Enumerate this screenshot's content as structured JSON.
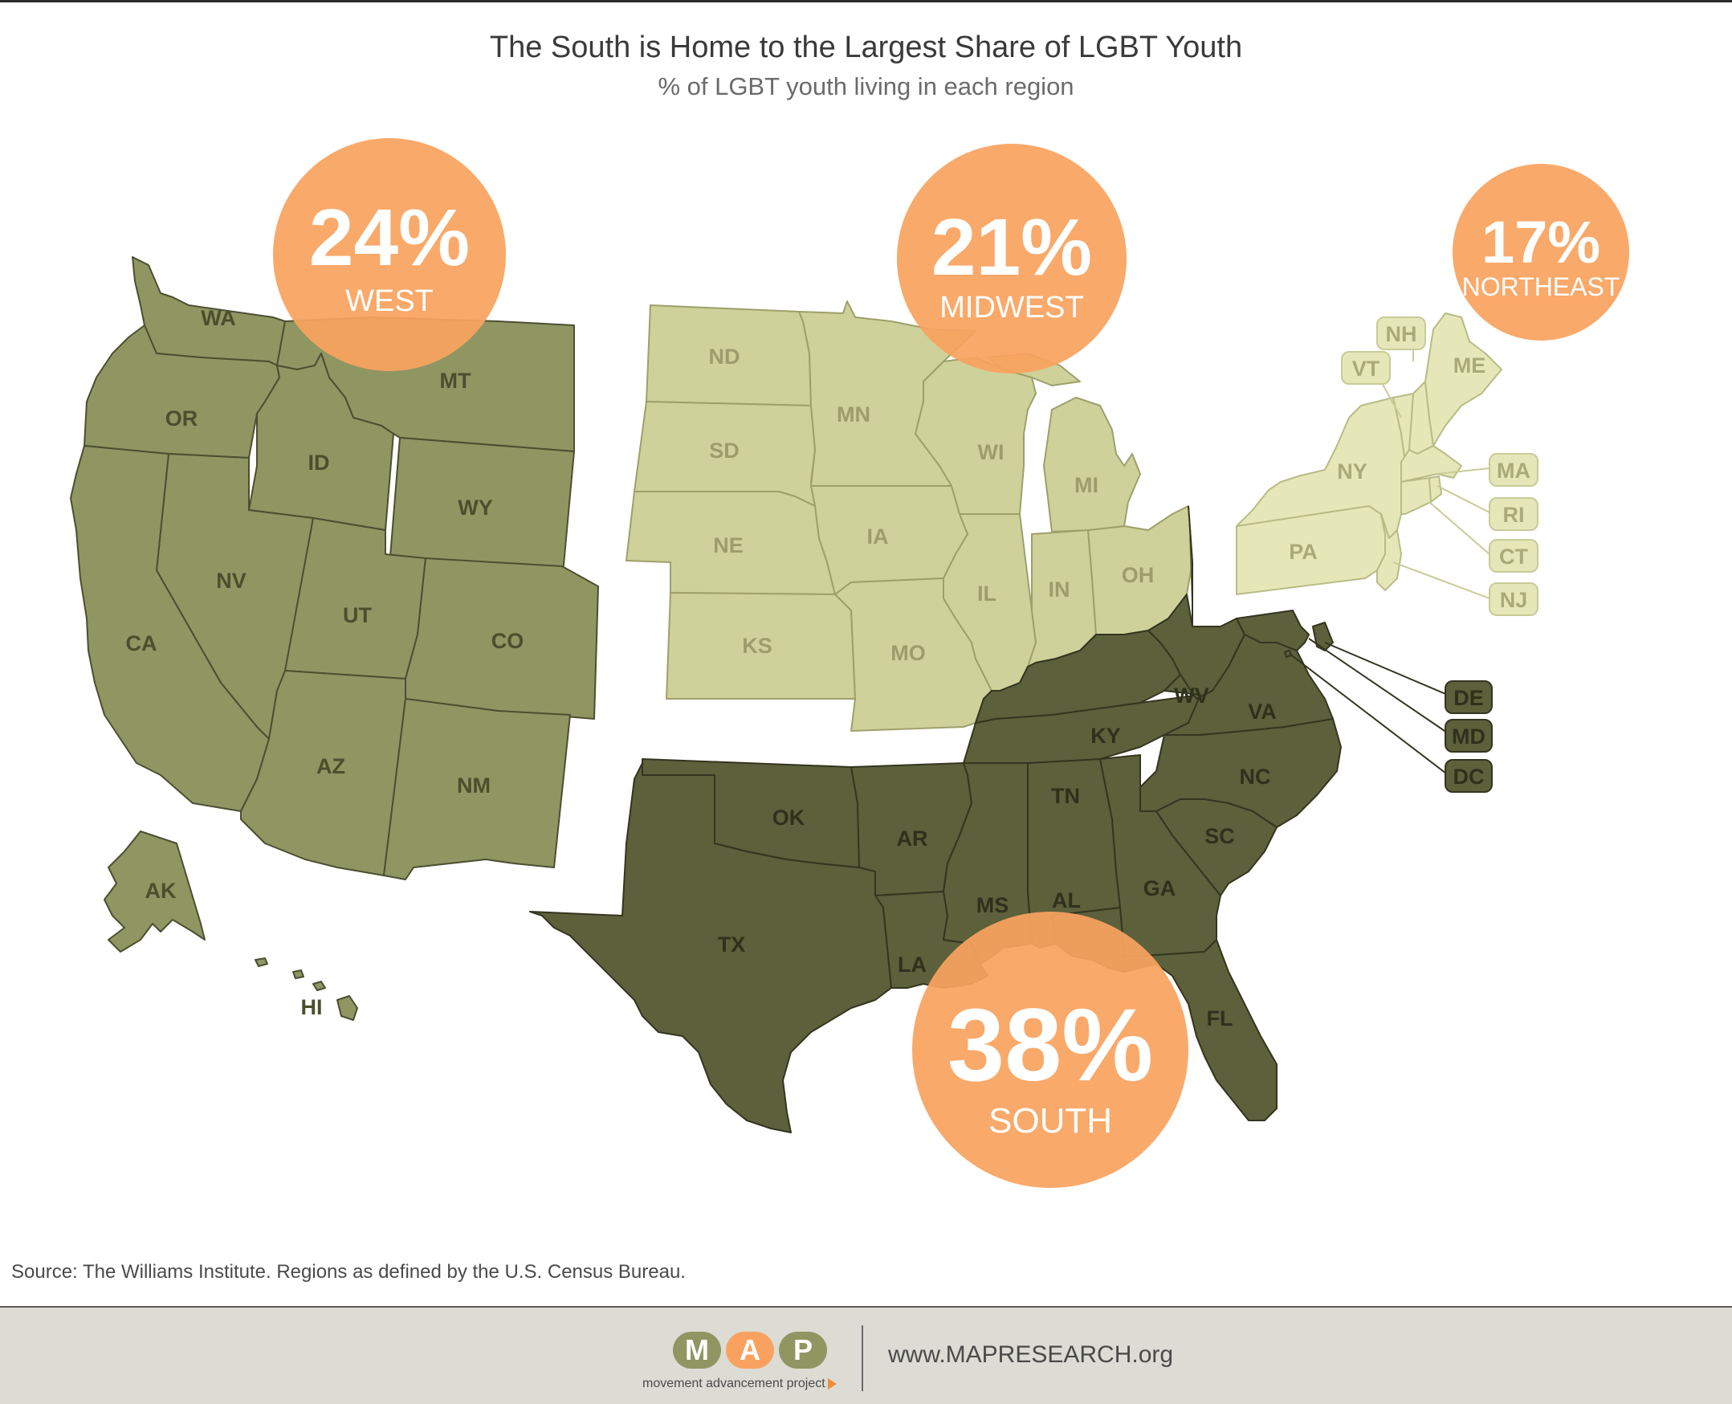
{
  "title": "The South is Home to the Largest Share of LGBT Youth",
  "subtitle": "% of LGBT youth living in each region",
  "regions": {
    "west": {
      "pct": "24%",
      "name": "WEST",
      "share": 24
    },
    "midwest": {
      "pct": "21%",
      "name": "MIDWEST",
      "share": 21
    },
    "northeast": {
      "pct": "17%",
      "name": "NORTHEAST",
      "share": 17
    },
    "south": {
      "pct": "38%",
      "name": "SOUTH",
      "share": 38
    }
  },
  "states": {
    "west": [
      "WA",
      "OR",
      "MT",
      "ID",
      "WY",
      "NV",
      "UT",
      "CO",
      "CA",
      "AZ",
      "NM",
      "AK",
      "HI"
    ],
    "midwest": [
      "ND",
      "MN",
      "SD",
      "WI",
      "MI",
      "NE",
      "IA",
      "IL",
      "IN",
      "OH",
      "KS",
      "MO"
    ],
    "northeast": [
      "NH",
      "VT",
      "ME",
      "NY",
      "MA",
      "RI",
      "CT",
      "PA",
      "NJ"
    ],
    "south": [
      "DE",
      "MD",
      "DC",
      "WV",
      "VA",
      "KY",
      "NC",
      "TN",
      "OK",
      "AR",
      "SC",
      "GA",
      "MS",
      "AL",
      "TX",
      "LA",
      "FL"
    ]
  },
  "colors": {
    "west": "#8f9662",
    "midwest": "#cfd19b",
    "northeast": "#e6e7b9",
    "south": "#5c603b",
    "bubble": "#f9a25f"
  },
  "source": "Source: The Williams Institute. Regions as defined by the U.S. Census Bureau.",
  "footer": {
    "logo_m": "M",
    "logo_a": "A",
    "logo_p": "P",
    "logo_tagline": "movement advancement project",
    "website": "www.MAPRESEARCH.org"
  }
}
